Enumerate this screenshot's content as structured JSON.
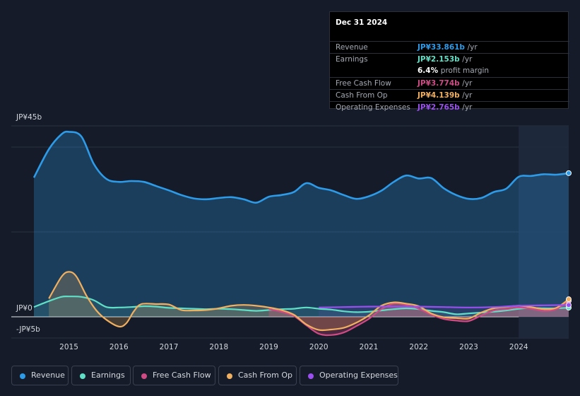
{
  "tooltip": {
    "date": "Dec 31 2024",
    "rows": [
      {
        "label": "Revenue",
        "value": "JP¥33.861b",
        "unit": "/yr",
        "color": "#2d9be8"
      },
      {
        "label": "Earnings",
        "value": "JP¥2.153b",
        "unit": "/yr",
        "color": "#5fe0c6"
      },
      {
        "label": "",
        "value": "6.4%",
        "unit": "profit margin",
        "color": "#ffffff"
      },
      {
        "label": "Free Cash Flow",
        "value": "JP¥3.774b",
        "unit": "/yr",
        "color": "#d04a86"
      },
      {
        "label": "Cash From Op",
        "value": "JP¥4.139b",
        "unit": "/yr",
        "color": "#f0b060"
      },
      {
        "label": "Operating Expenses",
        "value": "JP¥2.765b",
        "unit": "/yr",
        "color": "#9b4ff0"
      }
    ]
  },
  "legend": [
    {
      "label": "Revenue",
      "color": "#2d9be8"
    },
    {
      "label": "Earnings",
      "color": "#5fe0c6"
    },
    {
      "label": "Free Cash Flow",
      "color": "#d04a86"
    },
    {
      "label": "Cash From Op",
      "color": "#f0b060"
    },
    {
      "label": "Operating Expenses",
      "color": "#9b4ff0"
    }
  ],
  "chart_data": {
    "type": "area",
    "title": "",
    "xlabel": "",
    "ylabel": "",
    "ylim": [
      -5,
      45
    ],
    "y_tick_labels": [
      "JP¥45b",
      "JP¥0",
      "-JP¥5b"
    ],
    "x_tick_labels": [
      "2015",
      "2016",
      "2017",
      "2018",
      "2019",
      "2020",
      "2021",
      "2022",
      "2023",
      "2024"
    ],
    "x_range": [
      2014.3,
      2025.0
    ],
    "highlight_from": 2024.0,
    "series": [
      {
        "name": "Revenue",
        "color": "#2d9be8",
        "fill": true,
        "points": [
          [
            2014.3,
            32.8
          ],
          [
            2014.6,
            39.5
          ],
          [
            2014.85,
            43.0
          ],
          [
            2015.0,
            43.6
          ],
          [
            2015.25,
            42.5
          ],
          [
            2015.5,
            36.0
          ],
          [
            2015.75,
            32.5
          ],
          [
            2016.0,
            31.8
          ],
          [
            2016.25,
            32.0
          ],
          [
            2016.5,
            31.8
          ],
          [
            2016.75,
            30.8
          ],
          [
            2017.0,
            29.8
          ],
          [
            2017.25,
            28.7
          ],
          [
            2017.5,
            27.9
          ],
          [
            2017.75,
            27.7
          ],
          [
            2018.0,
            28.0
          ],
          [
            2018.25,
            28.2
          ],
          [
            2018.5,
            27.7
          ],
          [
            2018.75,
            26.9
          ],
          [
            2019.0,
            28.3
          ],
          [
            2019.25,
            28.7
          ],
          [
            2019.5,
            29.4
          ],
          [
            2019.75,
            31.5
          ],
          [
            2020.0,
            30.4
          ],
          [
            2020.25,
            29.8
          ],
          [
            2020.5,
            28.7
          ],
          [
            2020.75,
            27.8
          ],
          [
            2021.0,
            28.4
          ],
          [
            2021.25,
            29.7
          ],
          [
            2021.5,
            31.8
          ],
          [
            2021.75,
            33.3
          ],
          [
            2022.0,
            32.6
          ],
          [
            2022.25,
            32.7
          ],
          [
            2022.5,
            30.3
          ],
          [
            2022.75,
            28.7
          ],
          [
            2023.0,
            27.8
          ],
          [
            2023.25,
            28.0
          ],
          [
            2023.5,
            29.4
          ],
          [
            2023.75,
            30.2
          ],
          [
            2024.0,
            33.0
          ],
          [
            2024.25,
            33.2
          ],
          [
            2024.5,
            33.6
          ],
          [
            2024.75,
            33.5
          ],
          [
            2025.0,
            33.861
          ]
        ]
      },
      {
        "name": "Earnings",
        "color": "#5fe0c6",
        "fill": true,
        "points": [
          [
            2014.3,
            2.3
          ],
          [
            2014.6,
            3.7
          ],
          [
            2014.85,
            4.7
          ],
          [
            2015.0,
            4.8
          ],
          [
            2015.25,
            4.7
          ],
          [
            2015.5,
            3.9
          ],
          [
            2015.75,
            2.3
          ],
          [
            2016.0,
            2.2
          ],
          [
            2016.25,
            2.3
          ],
          [
            2016.5,
            2.5
          ],
          [
            2016.75,
            2.4
          ],
          [
            2017.0,
            2.1
          ],
          [
            2017.25,
            2.0
          ],
          [
            2017.5,
            1.9
          ],
          [
            2017.75,
            1.8
          ],
          [
            2018.0,
            1.9
          ],
          [
            2018.25,
            1.8
          ],
          [
            2018.5,
            1.6
          ],
          [
            2018.75,
            1.4
          ],
          [
            2019.0,
            1.6
          ],
          [
            2019.25,
            1.8
          ],
          [
            2019.5,
            1.9
          ],
          [
            2019.75,
            2.2
          ],
          [
            2020.0,
            1.9
          ],
          [
            2020.25,
            1.7
          ],
          [
            2020.5,
            1.3
          ],
          [
            2020.75,
            1.1
          ],
          [
            2021.0,
            1.2
          ],
          [
            2021.25,
            1.5
          ],
          [
            2021.5,
            1.8
          ],
          [
            2021.75,
            2.0
          ],
          [
            2022.0,
            1.8
          ],
          [
            2022.25,
            1.4
          ],
          [
            2022.5,
            1.1
          ],
          [
            2022.75,
            0.6
          ],
          [
            2023.0,
            0.8
          ],
          [
            2023.25,
            1.0
          ],
          [
            2023.5,
            1.2
          ],
          [
            2023.75,
            1.5
          ],
          [
            2024.0,
            1.9
          ],
          [
            2024.25,
            2.1
          ],
          [
            2024.5,
            2.0
          ],
          [
            2024.75,
            2.0
          ],
          [
            2025.0,
            2.153
          ]
        ]
      },
      {
        "name": "Free Cash Flow",
        "color": "#d04a86",
        "fill": true,
        "points": [
          [
            2019.0,
            1.8
          ],
          [
            2019.25,
            1.2
          ],
          [
            2019.5,
            0.2
          ],
          [
            2019.75,
            -2.0
          ],
          [
            2020.0,
            -4.0
          ],
          [
            2020.25,
            -4.3
          ],
          [
            2020.5,
            -3.7
          ],
          [
            2020.75,
            -2.2
          ],
          [
            2021.0,
            -0.5
          ],
          [
            2021.25,
            1.8
          ],
          [
            2021.5,
            3.1
          ],
          [
            2021.75,
            2.8
          ],
          [
            2022.0,
            1.9
          ],
          [
            2022.25,
            0.5
          ],
          [
            2022.5,
            -0.5
          ],
          [
            2022.75,
            -0.9
          ],
          [
            2023.0,
            -1.0
          ],
          [
            2023.25,
            0.3
          ],
          [
            2023.5,
            1.5
          ],
          [
            2023.75,
            1.8
          ],
          [
            2024.0,
            2.2
          ],
          [
            2024.25,
            1.9
          ],
          [
            2024.5,
            1.4
          ],
          [
            2024.75,
            1.8
          ],
          [
            2025.0,
            3.774
          ]
        ]
      },
      {
        "name": "Cash From Op",
        "color": "#f0b060",
        "fill": true,
        "points": [
          [
            2014.6,
            4.3
          ],
          [
            2014.85,
            9.4
          ],
          [
            2015.0,
            10.6
          ],
          [
            2015.15,
            9.5
          ],
          [
            2015.35,
            5.0
          ],
          [
            2015.55,
            1.5
          ],
          [
            2015.75,
            -0.7
          ],
          [
            2016.0,
            -2.3
          ],
          [
            2016.15,
            -1.5
          ],
          [
            2016.3,
            1.3
          ],
          [
            2016.45,
            3.0
          ],
          [
            2016.75,
            3.0
          ],
          [
            2017.0,
            2.9
          ],
          [
            2017.25,
            1.6
          ],
          [
            2017.5,
            1.5
          ],
          [
            2017.75,
            1.6
          ],
          [
            2018.0,
            2.0
          ],
          [
            2018.25,
            2.6
          ],
          [
            2018.5,
            2.8
          ],
          [
            2018.75,
            2.6
          ],
          [
            2019.0,
            2.2
          ],
          [
            2019.25,
            1.6
          ],
          [
            2019.5,
            0.5
          ],
          [
            2019.75,
            -1.8
          ],
          [
            2020.0,
            -3.1
          ],
          [
            2020.25,
            -3.0
          ],
          [
            2020.5,
            -2.6
          ],
          [
            2020.75,
            -1.4
          ],
          [
            2021.0,
            0.3
          ],
          [
            2021.25,
            2.6
          ],
          [
            2021.5,
            3.4
          ],
          [
            2021.75,
            3.1
          ],
          [
            2022.0,
            2.5
          ],
          [
            2022.25,
            0.8
          ],
          [
            2022.5,
            -0.1
          ],
          [
            2022.75,
            -0.3
          ],
          [
            2023.0,
            -0.4
          ],
          [
            2023.25,
            1.0
          ],
          [
            2023.5,
            2.0
          ],
          [
            2023.75,
            2.3
          ],
          [
            2024.0,
            2.6
          ],
          [
            2024.25,
            2.3
          ],
          [
            2024.5,
            1.8
          ],
          [
            2024.75,
            2.1
          ],
          [
            2025.0,
            4.139
          ]
        ]
      },
      {
        "name": "Operating Expenses",
        "color": "#9b4ff0",
        "fill": true,
        "points": [
          [
            2020.0,
            2.2
          ],
          [
            2020.5,
            2.3
          ],
          [
            2021.0,
            2.4
          ],
          [
            2021.5,
            2.4
          ],
          [
            2022.0,
            2.4
          ],
          [
            2022.5,
            2.3
          ],
          [
            2023.0,
            2.2
          ],
          [
            2023.5,
            2.3
          ],
          [
            2024.0,
            2.6
          ],
          [
            2024.5,
            2.7
          ],
          [
            2025.0,
            2.765
          ]
        ]
      }
    ]
  }
}
